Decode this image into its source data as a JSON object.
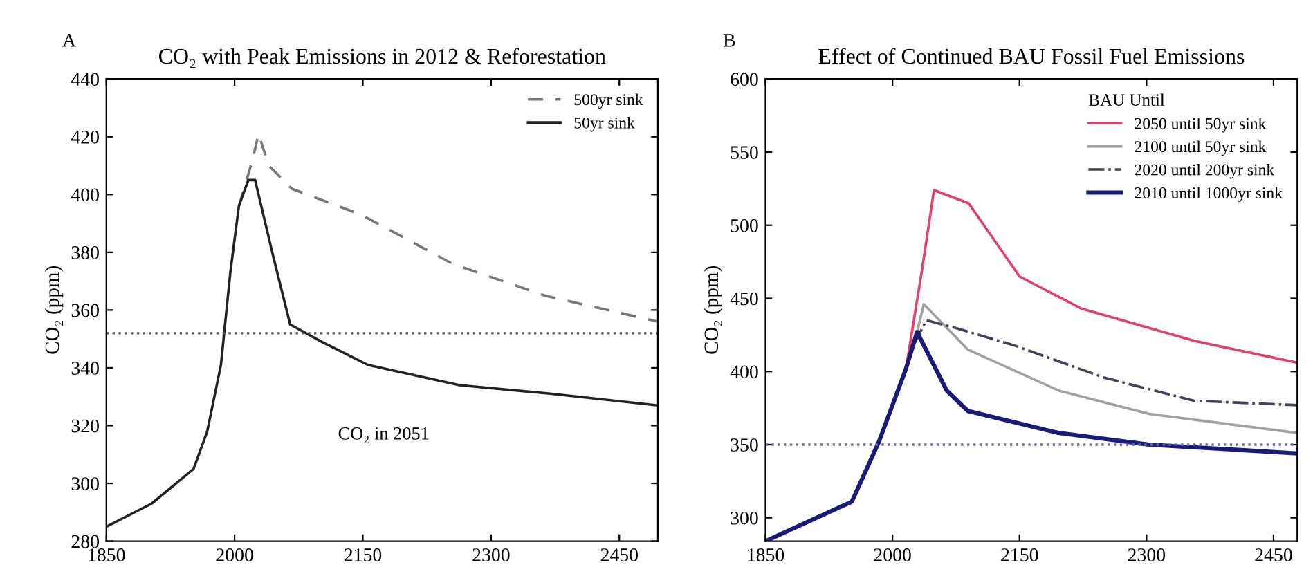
{
  "chart_data": [
    {
      "type": "line",
      "title": "CO₂ with Peak Emissions in 2012 & Reforestation",
      "ylabel": "CO₂ (ppm)",
      "annotations": [
        "A",
        "CO₂ in 2051"
      ],
      "xlim": [
        1850,
        2495
      ],
      "xticks": [
        1850,
        2000,
        2150,
        2300,
        2450
      ],
      "ylim": [
        280,
        440
      ],
      "yticks": [
        280,
        300,
        320,
        340,
        360,
        380,
        400,
        420,
        440
      ],
      "legend": "top right",
      "grid": false,
      "ref_lines": [
        {
          "axis": "y",
          "value": 352,
          "color": "#555555",
          "line_style": "dotted"
        }
      ],
      "series": [
        {
          "name": "500yr sink",
          "color": "#777777",
          "line_style": "dashed",
          "x": [
            2005,
            2021,
            2028,
            2040,
            2067,
            2148,
            2255,
            2363,
            2495
          ],
          "values": [
            396,
            412,
            421,
            410,
            402,
            393,
            376,
            365,
            356
          ]
        },
        {
          "name": "50yr sink",
          "color": "#222222",
          "line_style": "solid",
          "x": [
            1850,
            1903,
            1952,
            1968,
            1984,
            1995,
            2005,
            2016,
            2024,
            2044,
            2065,
            2102,
            2156,
            2263,
            2371,
            2495
          ],
          "values": [
            285,
            293,
            305,
            318,
            341,
            373,
            396,
            405,
            405,
            380,
            355,
            349,
            341,
            334,
            331,
            327
          ]
        }
      ]
    },
    {
      "type": "line",
      "title": "Effect of Continued BAU Fossil Fuel Emissions",
      "ylabel": "CO₂ (ppm)",
      "legend_title": "BAU Until",
      "annotations": [
        "B"
      ],
      "xlim": [
        1850,
        2478
      ],
      "xticks": [
        1850,
        2000,
        2150,
        2300,
        2450
      ],
      "ylim": [
        284,
        600
      ],
      "yticks": [
        300,
        350,
        400,
        450,
        500,
        550,
        600
      ],
      "legend": "top right",
      "grid": false,
      "ref_lines": [
        {
          "axis": "y",
          "value": 350,
          "color": "#6a6aa8",
          "line_style": "dotted"
        }
      ],
      "series": [
        {
          "name": "2050 until 50yr sink",
          "color": "#e0406a",
          "line_style": "solid",
          "x": [
            2016,
            2035,
            2049,
            2090,
            2150,
            2223,
            2356,
            2478
          ],
          "values": [
            402,
            470,
            524,
            515,
            465,
            443,
            421,
            406
          ]
        },
        {
          "name": "2100 until 50yr sink",
          "color": "#a0a0a0",
          "line_style": "solid",
          "x": [
            2016,
            2029,
            2037,
            2089,
            2196,
            2303,
            2478
          ],
          "values": [
            402,
            427,
            446,
            415,
            387,
            371,
            358
          ]
        },
        {
          "name": "2020 until 200yr sink",
          "color": "#404060",
          "line_style": "dashdot",
          "x": [
            2016,
            2024,
            2040,
            2073,
            2143,
            2249,
            2356,
            2478
          ],
          "values": [
            402,
            417,
            435,
            430,
            418,
            396,
            380,
            377
          ]
        },
        {
          "name": "2010 until 1000yr sink",
          "color": "#1a1a7a",
          "line_style": "solid",
          "x": [
            1850,
            1952,
            1984,
            2016,
            2029,
            2064,
            2089,
            2196,
            2303,
            2478
          ],
          "values": [
            284,
            311,
            352,
            402,
            427,
            387,
            373,
            358,
            350,
            344
          ]
        }
      ]
    }
  ]
}
